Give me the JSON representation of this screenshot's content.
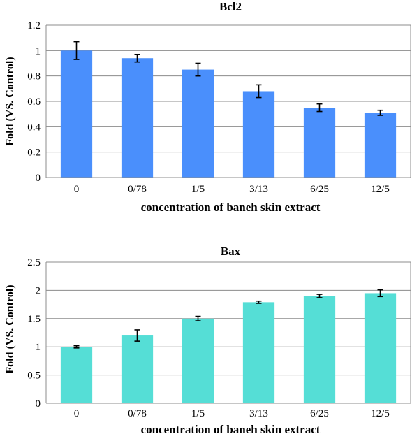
{
  "chart_data": [
    {
      "type": "bar",
      "title": "Bcl2",
      "xlabel": "concentration  of baneh skin extract",
      "ylabel": "Fold (VS. Control)",
      "categories": [
        "0",
        "0/78",
        "1/5",
        "3/13",
        "6/25",
        "12/5"
      ],
      "values": [
        1.0,
        0.94,
        0.85,
        0.68,
        0.55,
        0.51
      ],
      "errors": [
        0.07,
        0.03,
        0.05,
        0.05,
        0.03,
        0.02
      ],
      "ylim": [
        0,
        1.2
      ],
      "yticks": [
        "0",
        "0.2",
        "0.4",
        "0.6",
        "0.8",
        "1",
        "1.2"
      ],
      "grid": true,
      "color": "#4a8ffc"
    },
    {
      "type": "bar",
      "title": "Bax",
      "xlabel": "concentration  of baneh skin extract",
      "ylabel": "Fold (VS. Control)",
      "categories": [
        "0",
        "0/78",
        "1/5",
        "3/13",
        "6/25",
        "12/5"
      ],
      "values": [
        1.0,
        1.2,
        1.5,
        1.79,
        1.9,
        1.95
      ],
      "errors": [
        0.02,
        0.1,
        0.04,
        0.02,
        0.03,
        0.06
      ],
      "ylim": [
        0,
        2.5
      ],
      "yticks": [
        "0",
        "0.5",
        "1",
        "1.5",
        "2",
        "2.5"
      ],
      "grid": true,
      "color": "#55ded6"
    }
  ]
}
